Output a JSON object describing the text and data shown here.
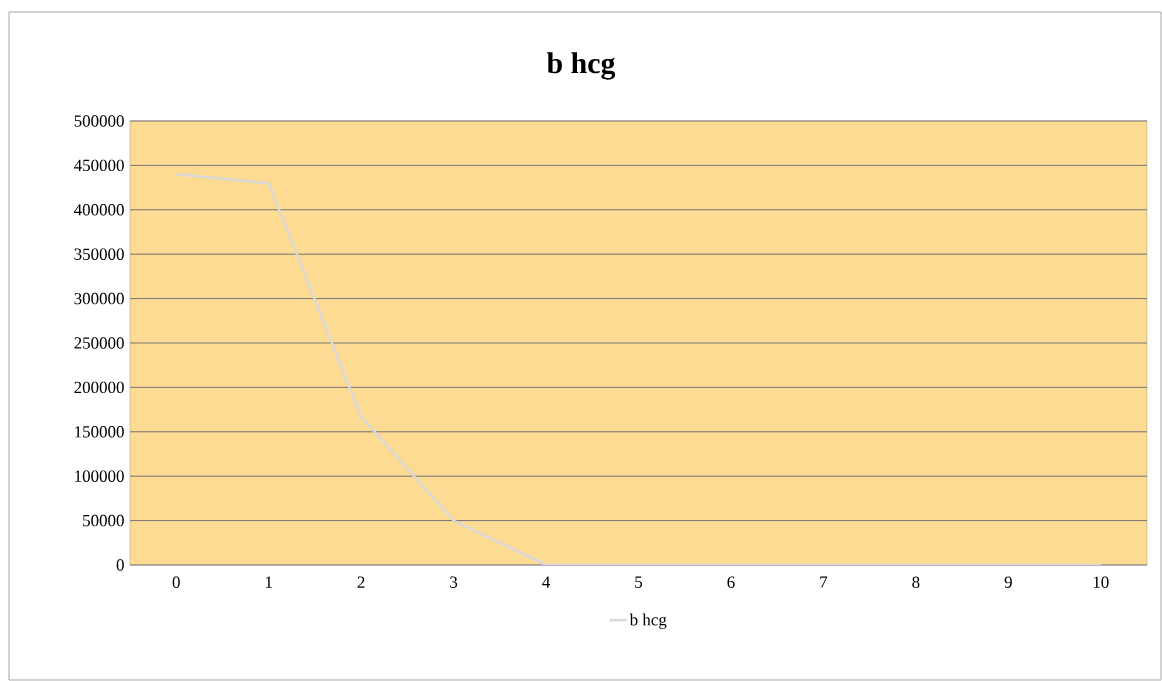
{
  "chart_data": {
    "type": "line",
    "title": "b  hcg",
    "categories": [
      "0",
      "1",
      "2",
      "3",
      "4",
      "5",
      "6",
      "7",
      "8",
      "9",
      "10"
    ],
    "series": [
      {
        "name": "b  hcg",
        "color": "#d9d9d9",
        "values": [
          440000,
          430000,
          167000,
          50000,
          0,
          0,
          0,
          0,
          0,
          0,
          0
        ]
      }
    ],
    "ylim": [
      0,
      500000
    ],
    "yticks": [
      0,
      50000,
      100000,
      150000,
      200000,
      250000,
      300000,
      350000,
      400000,
      450000,
      500000
    ],
    "grid": "y",
    "legend": "bottom",
    "marker": "none",
    "line_style": "solid"
  }
}
